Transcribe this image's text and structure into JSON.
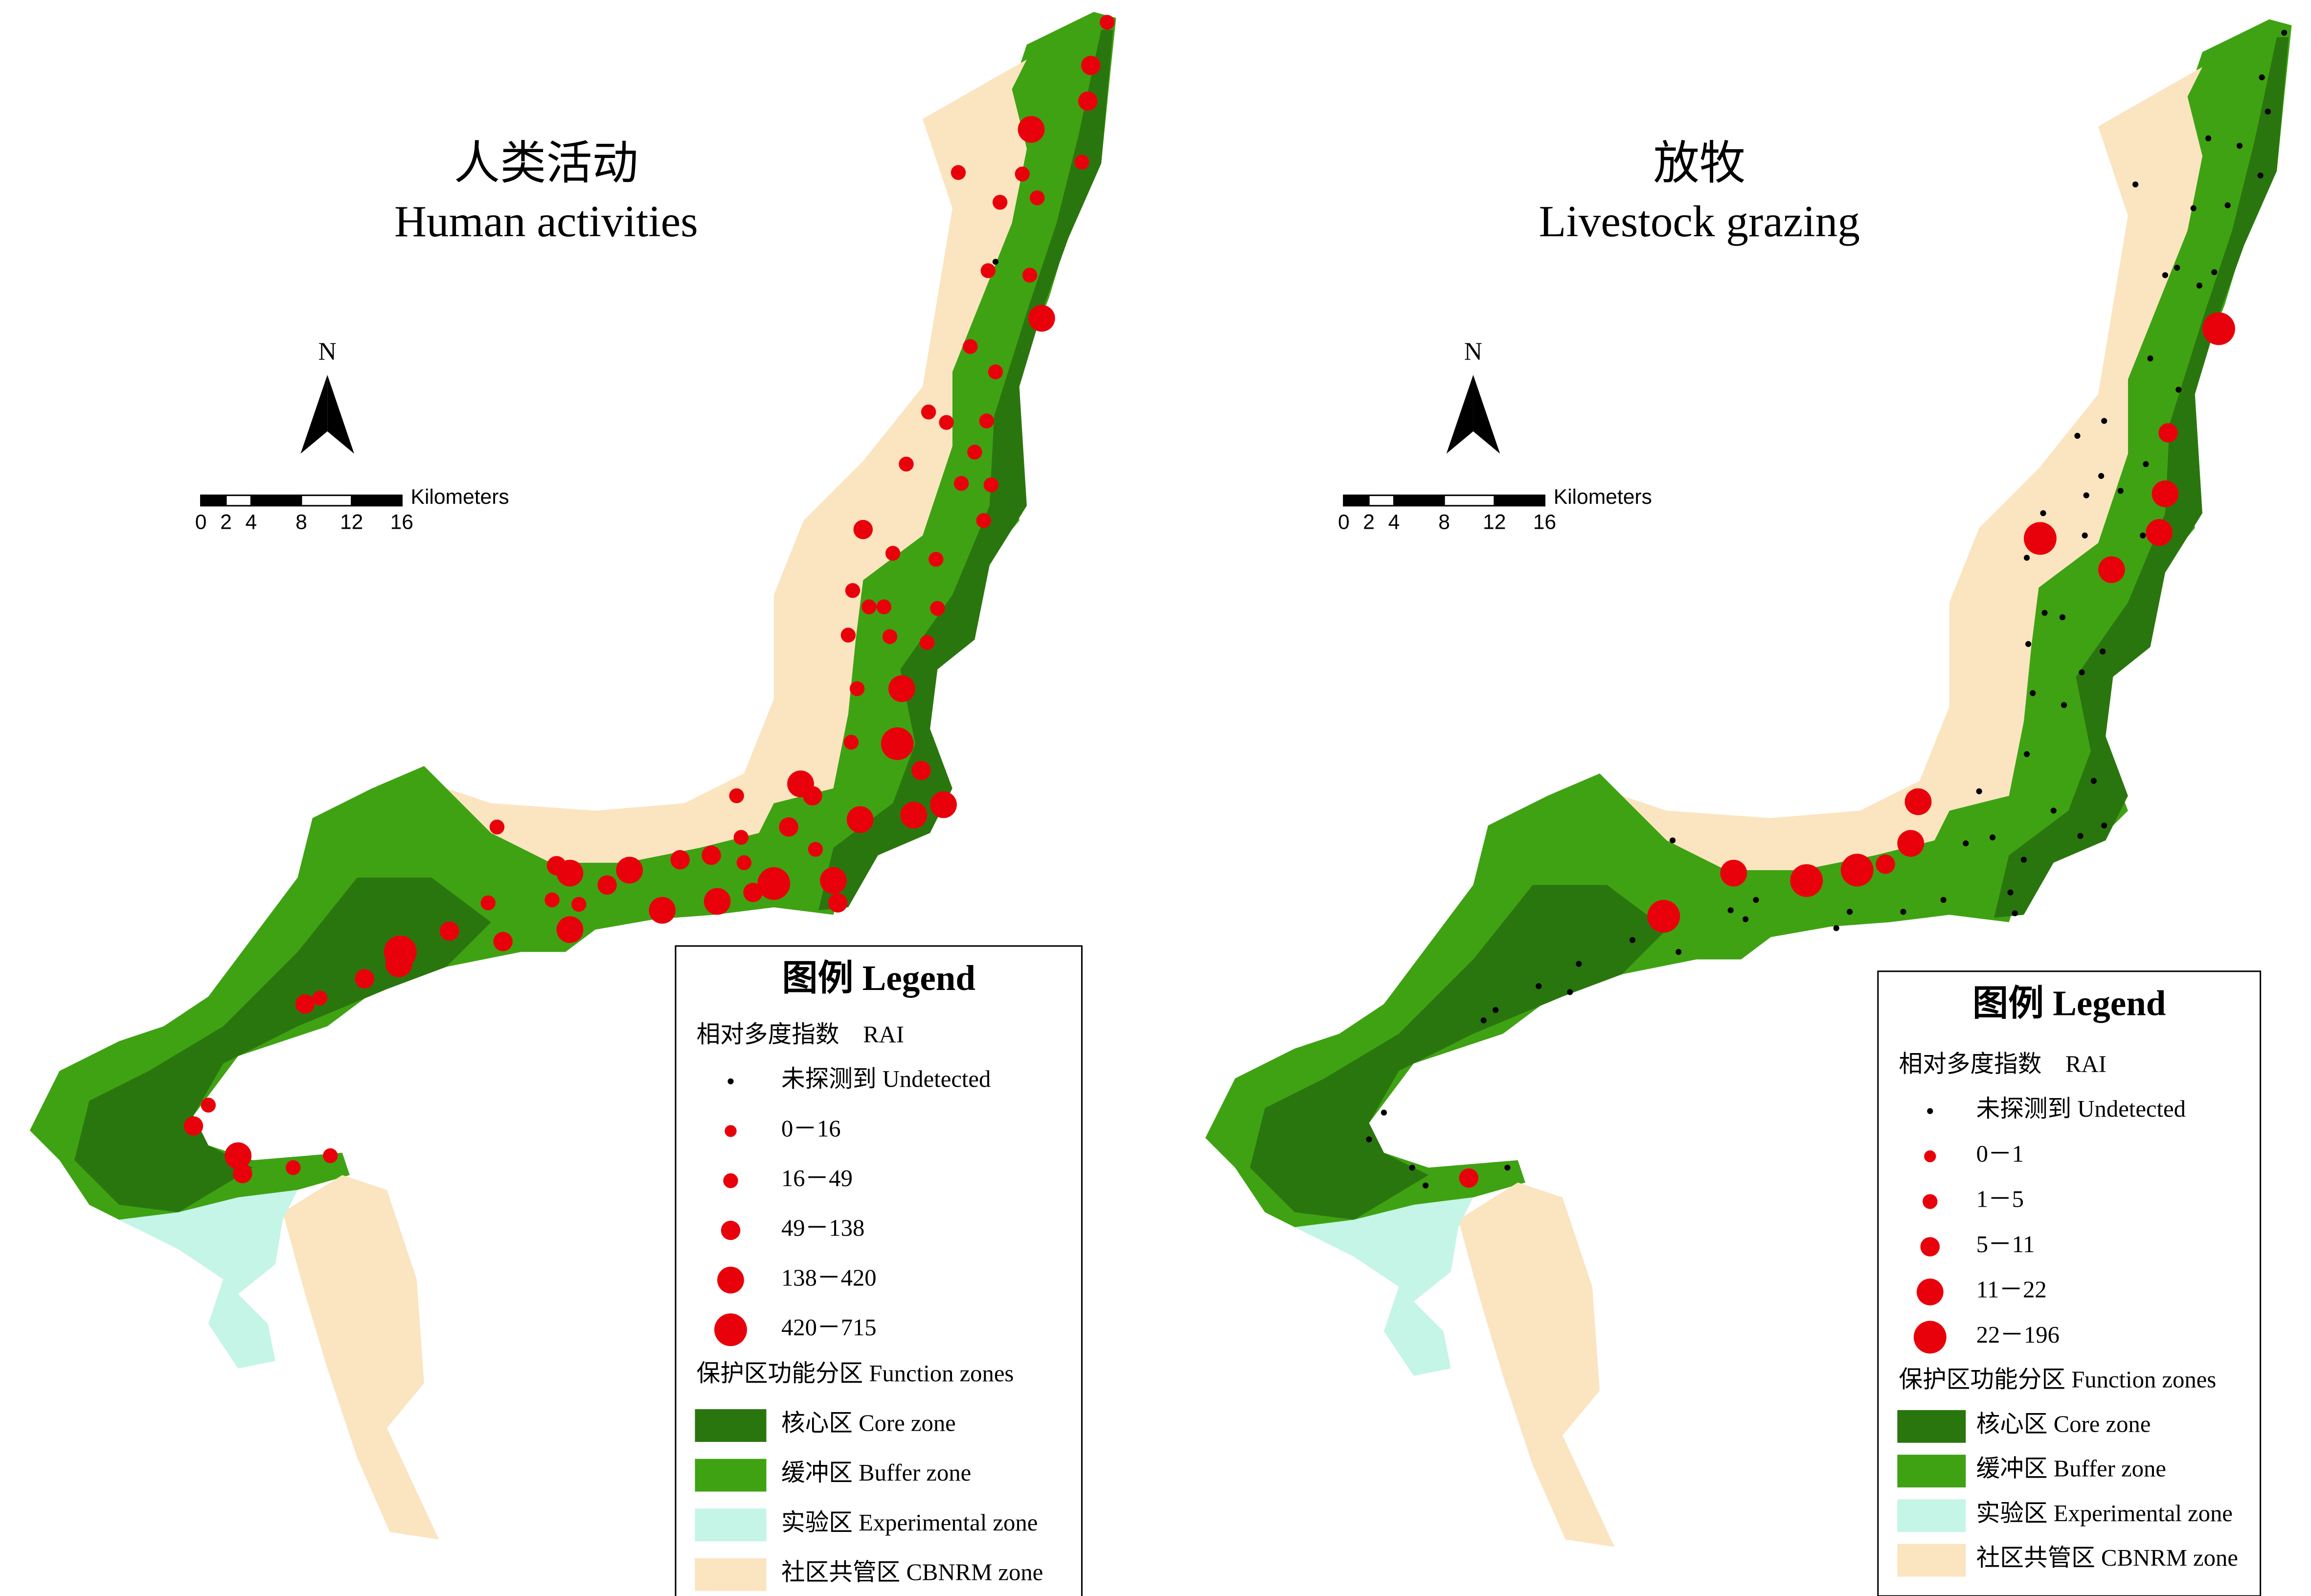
{
  "maps": [
    {
      "title_zh": "人类活动",
      "title_en": "Human activities",
      "north": "N",
      "scale_unit": "Kilometers",
      "scale_ticks": [
        0,
        2,
        4,
        8,
        12,
        16
      ],
      "legend": {
        "title": "图例 Legend",
        "rai_heading": "相对多度指数　RAI",
        "classes": [
          "未探测到 Undetected",
          "0－16",
          "16－49",
          "49－138",
          "138－420",
          "420－715"
        ],
        "zones_heading": "保护区功能分区 Function zones",
        "zones": [
          {
            "label": "核心区 Core zone",
            "color": "#2a760e"
          },
          {
            "label": "缓冲区 Buffer zone",
            "color": "#3fa213"
          },
          {
            "label": "实验区 Experimental zone",
            "color": "#c4f5e6"
          },
          {
            "label": "社区共管区 CBNRM zone",
            "color": "#fbe4c0"
          }
        ]
      }
    },
    {
      "title_zh": "放牧",
      "title_en": "Livestock grazing",
      "north": "N",
      "scale_unit": "Kilometers",
      "scale_ticks": [
        0,
        2,
        4,
        8,
        12,
        16
      ],
      "legend": {
        "title": "图例 Legend",
        "rai_heading": "相对多度指数　RAI",
        "classes": [
          "未探测到 Undetected",
          "0－1",
          "1－5",
          "5－11",
          "11－22",
          "22－196"
        ],
        "zones_heading": "保护区功能分区 Function zones",
        "zones": [
          {
            "label": "核心区 Core zone",
            "color": "#2a760e"
          },
          {
            "label": "缓冲区 Buffer zone",
            "color": "#3fa213"
          },
          {
            "label": "实验区 Experimental zone",
            "color": "#c4f5e6"
          },
          {
            "label": "社区共管区 CBNRM zone",
            "color": "#fbe4c0"
          }
        ]
      }
    }
  ]
}
